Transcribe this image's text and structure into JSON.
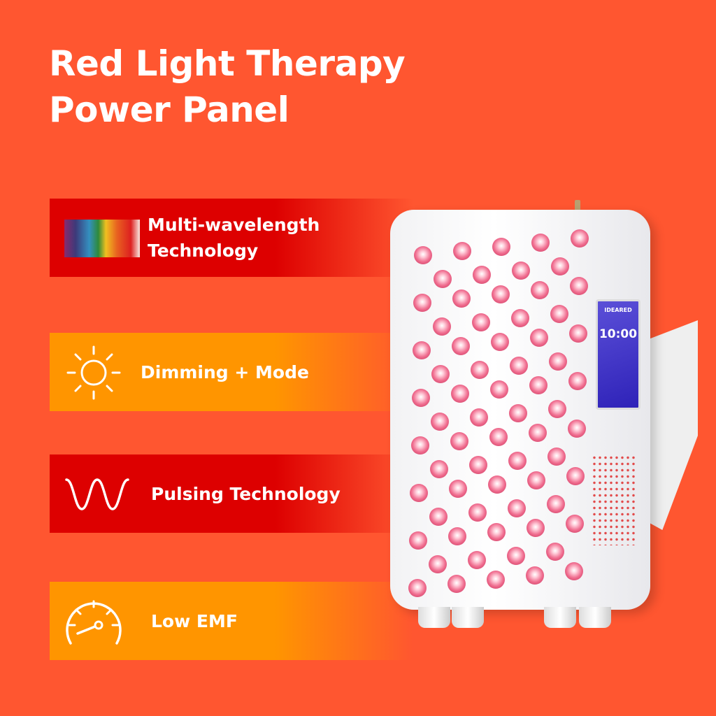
{
  "title": {
    "line1": "Red Light Therapy",
    "line2": "Power Panel"
  },
  "features": [
    {
      "label_line1": "Multi-wavelength",
      "label_line2": "Technology",
      "icon": "spectrum-icon",
      "color": "#dd0000"
    },
    {
      "label": "Dimming + Mode",
      "icon": "sun-icon",
      "color": "#ff9500"
    },
    {
      "label": "Pulsing Technology",
      "icon": "wave-icon",
      "color": "#dd0000"
    },
    {
      "label": "Low EMF",
      "icon": "speedometer-icon",
      "color": "#ff9500"
    }
  ],
  "device": {
    "brand": "IDEARED",
    "time": "10:00"
  },
  "colors": {
    "background": "#ff5630",
    "red": "#dd0000",
    "orange": "#ff9500"
  }
}
